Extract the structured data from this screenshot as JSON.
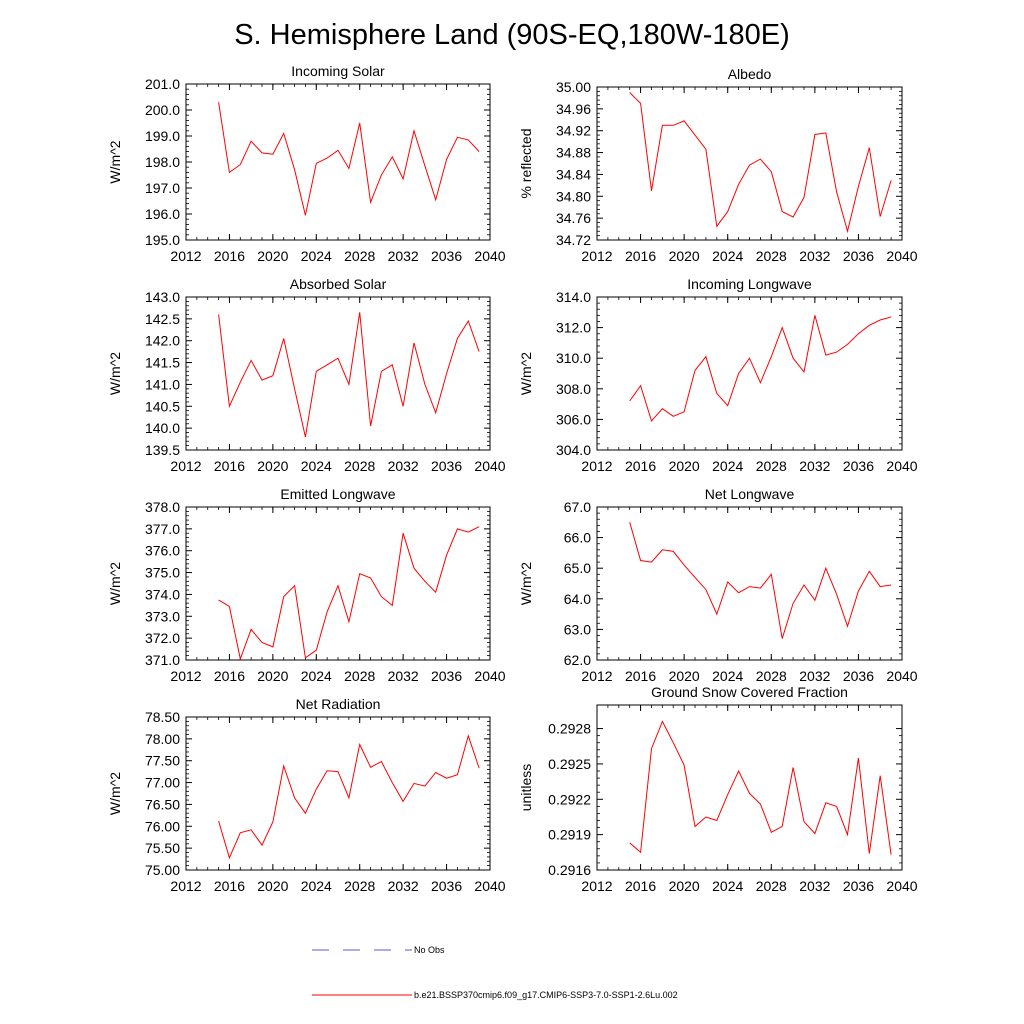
{
  "figure": {
    "title": "S. Hemisphere Land (90S-EQ,180W-180E)",
    "series_color": "#ff0000",
    "obs_color": "#5b5bc8",
    "legend": [
      {
        "label": "No Obs",
        "style": "dashed",
        "color": "#5b5bc8"
      },
      {
        "label": "b.e21.BSSP370cmip6.f09_g17.CMIP6-SSP3-7.0-SSP1-2.6Lu.002",
        "style": "solid",
        "color": "#ff0000"
      }
    ]
  },
  "chart_data": [
    {
      "type": "line",
      "title": "Incoming Solar",
      "ylabel": "W/m^2",
      "xlim": [
        2012,
        2040
      ],
      "ylim": [
        195.0,
        201.0
      ],
      "xticks": [
        "2012",
        "2016",
        "2020",
        "2024",
        "2028",
        "2032",
        "2036",
        "2040"
      ],
      "yticks": [
        "195.0",
        "196.0",
        "197.0",
        "198.0",
        "199.0",
        "200.0",
        "201.0"
      ],
      "x": [
        2015,
        2016,
        2017,
        2018,
        2019,
        2020,
        2021,
        2022,
        2023,
        2024,
        2025,
        2026,
        2027,
        2028,
        2029,
        2030,
        2031,
        2032,
        2033,
        2034,
        2035,
        2036,
        2037,
        2038,
        2039
      ],
      "series": [
        {
          "values": [
            200.3,
            197.6,
            197.9,
            198.8,
            198.35,
            198.3,
            199.1,
            197.7,
            195.95,
            197.95,
            198.15,
            198.45,
            197.75,
            199.5,
            196.45,
            197.5,
            198.2,
            197.35,
            199.2,
            197.85,
            196.55,
            198.1,
            198.95,
            198.85,
            198.4
          ]
        }
      ]
    },
    {
      "type": "line",
      "title": "Albedo",
      "ylabel": "% reflected",
      "xlim": [
        2012,
        2040
      ],
      "ylim": [
        34.72,
        35.0
      ],
      "xticks": [
        "2012",
        "2016",
        "2020",
        "2024",
        "2028",
        "2032",
        "2036",
        "2040"
      ],
      "yticks": [
        "34.72",
        "34.76",
        "34.80",
        "34.84",
        "34.88",
        "34.92",
        "34.96",
        "35.00"
      ],
      "x": [
        2015,
        2016,
        2017,
        2018,
        2019,
        2020,
        2021,
        2022,
        2023,
        2024,
        2025,
        2026,
        2027,
        2028,
        2029,
        2030,
        2031,
        2032,
        2033,
        2034,
        2035,
        2036,
        2037,
        2038,
        2039
      ],
      "series": [
        {
          "values": [
            34.99,
            34.97,
            34.81,
            34.93,
            34.93,
            34.938,
            34.912,
            34.886,
            34.745,
            34.772,
            34.822,
            34.857,
            34.868,
            34.845,
            34.772,
            34.762,
            34.798,
            34.913,
            34.916,
            34.808,
            34.736,
            34.818,
            34.889,
            34.763,
            34.829
          ]
        }
      ]
    },
    {
      "type": "line",
      "title": "Absorbed Solar",
      "ylabel": "W/m^2",
      "xlim": [
        2012,
        2040
      ],
      "ylim": [
        139.5,
        143.0
      ],
      "xticks": [
        "2012",
        "2016",
        "2020",
        "2024",
        "2028",
        "2032",
        "2036",
        "2040"
      ],
      "yticks": [
        "139.5",
        "140.0",
        "140.5",
        "141.0",
        "141.5",
        "142.0",
        "142.5",
        "143.0"
      ],
      "x": [
        2015,
        2016,
        2017,
        2018,
        2019,
        2020,
        2021,
        2022,
        2023,
        2024,
        2025,
        2026,
        2027,
        2028,
        2029,
        2030,
        2031,
        2032,
        2033,
        2034,
        2035,
        2036,
        2037,
        2038,
        2039
      ],
      "series": [
        {
          "values": [
            142.6,
            140.5,
            141.05,
            141.55,
            141.1,
            141.2,
            142.05,
            140.9,
            139.8,
            141.3,
            141.45,
            141.6,
            141.0,
            142.65,
            140.05,
            141.3,
            141.45,
            140.5,
            141.95,
            141.0,
            140.35,
            141.25,
            142.05,
            142.45,
            141.75
          ]
        }
      ]
    },
    {
      "type": "line",
      "title": "Incoming Longwave",
      "ylabel": "W/m^2",
      "xlim": [
        2012,
        2040
      ],
      "ylim": [
        304.0,
        314.0
      ],
      "xticks": [
        "2012",
        "2016",
        "2020",
        "2024",
        "2028",
        "2032",
        "2036",
        "2040"
      ],
      "yticks": [
        "304.0",
        "306.0",
        "308.0",
        "310.0",
        "312.0",
        "314.0"
      ],
      "x": [
        2015,
        2016,
        2017,
        2018,
        2019,
        2020,
        2021,
        2022,
        2023,
        2024,
        2025,
        2026,
        2027,
        2028,
        2029,
        2030,
        2031,
        2032,
        2033,
        2034,
        2035,
        2036,
        2037,
        2038,
        2039
      ],
      "series": [
        {
          "values": [
            307.2,
            308.2,
            305.9,
            306.7,
            306.2,
            306.5,
            309.2,
            310.1,
            307.7,
            306.9,
            309.0,
            310.0,
            308.4,
            310.1,
            312.0,
            310.0,
            309.1,
            312.8,
            310.2,
            310.4,
            310.9,
            311.6,
            312.15,
            312.5,
            312.7
          ]
        }
      ]
    },
    {
      "type": "line",
      "title": "Emitted Longwave",
      "ylabel": "W/m^2",
      "xlim": [
        2012,
        2040
      ],
      "ylim": [
        371.0,
        378.0
      ],
      "xticks": [
        "2012",
        "2016",
        "2020",
        "2024",
        "2028",
        "2032",
        "2036",
        "2040"
      ],
      "yticks": [
        "371.0",
        "372.0",
        "373.0",
        "374.0",
        "375.0",
        "376.0",
        "377.0",
        "378.0"
      ],
      "x": [
        2015,
        2016,
        2017,
        2018,
        2019,
        2020,
        2021,
        2022,
        2023,
        2024,
        2025,
        2026,
        2027,
        2028,
        2029,
        2030,
        2031,
        2032,
        2033,
        2034,
        2035,
        2036,
        2037,
        2038,
        2039
      ],
      "series": [
        {
          "values": [
            373.75,
            373.45,
            371.05,
            372.4,
            371.8,
            371.6,
            373.9,
            374.4,
            371.1,
            371.45,
            373.2,
            374.4,
            372.75,
            374.95,
            374.75,
            373.9,
            373.5,
            376.8,
            375.2,
            374.6,
            374.1,
            375.8,
            377.0,
            376.85,
            377.1
          ]
        }
      ]
    },
    {
      "type": "line",
      "title": "Net Longwave",
      "ylabel": "W/m^2",
      "xlim": [
        2012,
        2040
      ],
      "ylim": [
        62.0,
        67.0
      ],
      "xticks": [
        "2012",
        "2016",
        "2020",
        "2024",
        "2028",
        "2032",
        "2036",
        "2040"
      ],
      "yticks": [
        "62.0",
        "63.0",
        "64.0",
        "65.0",
        "66.0",
        "67.0"
      ],
      "x": [
        2015,
        2016,
        2017,
        2018,
        2019,
        2020,
        2021,
        2022,
        2023,
        2024,
        2025,
        2026,
        2027,
        2028,
        2029,
        2030,
        2031,
        2032,
        2033,
        2034,
        2035,
        2036,
        2037,
        2038,
        2039
      ],
      "series": [
        {
          "values": [
            66.5,
            65.25,
            65.2,
            65.6,
            65.55,
            65.1,
            64.7,
            64.3,
            63.5,
            64.55,
            64.2,
            64.4,
            64.35,
            64.8,
            62.7,
            63.85,
            64.45,
            63.95,
            65.0,
            64.15,
            63.1,
            64.25,
            64.9,
            64.4,
            64.45
          ]
        }
      ]
    },
    {
      "type": "line",
      "title": "Net Radiation",
      "ylabel": "W/m^2",
      "xlim": [
        2012,
        2040
      ],
      "ylim": [
        75.0,
        78.5
      ],
      "xticks": [
        "2012",
        "2016",
        "2020",
        "2024",
        "2028",
        "2032",
        "2036",
        "2040"
      ],
      "yticks": [
        "75.00",
        "75.50",
        "76.00",
        "76.50",
        "77.00",
        "77.50",
        "78.00",
        "78.50"
      ],
      "x": [
        2015,
        2016,
        2017,
        2018,
        2019,
        2020,
        2021,
        2022,
        2023,
        2024,
        2025,
        2026,
        2027,
        2028,
        2029,
        2030,
        2031,
        2032,
        2033,
        2034,
        2035,
        2036,
        2037,
        2038,
        2039
      ],
      "series": [
        {
          "values": [
            76.12,
            75.28,
            75.85,
            75.92,
            75.57,
            76.1,
            77.38,
            76.65,
            76.3,
            76.85,
            77.27,
            77.25,
            76.65,
            77.87,
            77.35,
            77.48,
            77.0,
            76.57,
            76.98,
            76.92,
            77.23,
            77.1,
            77.18,
            78.07,
            77.33
          ]
        }
      ]
    },
    {
      "type": "line",
      "title": "Ground Snow Covered Fraction",
      "ylabel": "unitless",
      "xlim": [
        2012,
        2040
      ],
      "ylim": [
        0.2916,
        0.293
      ],
      "xticks": [
        "2012",
        "2016",
        "2020",
        "2024",
        "2028",
        "2032",
        "2036",
        "2040"
      ],
      "yticks": [
        "0.2916",
        "0.2919",
        "0.2922",
        "0.2925",
        "0.2928"
      ],
      "x": [
        2015,
        2016,
        2017,
        2018,
        2019,
        2020,
        2021,
        2022,
        2023,
        2024,
        2025,
        2026,
        2027,
        2028,
        2029,
        2030,
        2031,
        2032,
        2033,
        2034,
        2035,
        2036,
        2037,
        2038,
        2039
      ],
      "series": [
        {
          "values": [
            0.29183,
            0.29175,
            0.29263,
            0.29286,
            0.29268,
            0.29249,
            0.29197,
            0.29205,
            0.29202,
            0.29224,
            0.29244,
            0.29225,
            0.29216,
            0.29192,
            0.29197,
            0.29247,
            0.29201,
            0.29191,
            0.29217,
            0.29214,
            0.2919,
            0.29255,
            0.29174,
            0.2924,
            0.29173
          ]
        }
      ]
    }
  ]
}
